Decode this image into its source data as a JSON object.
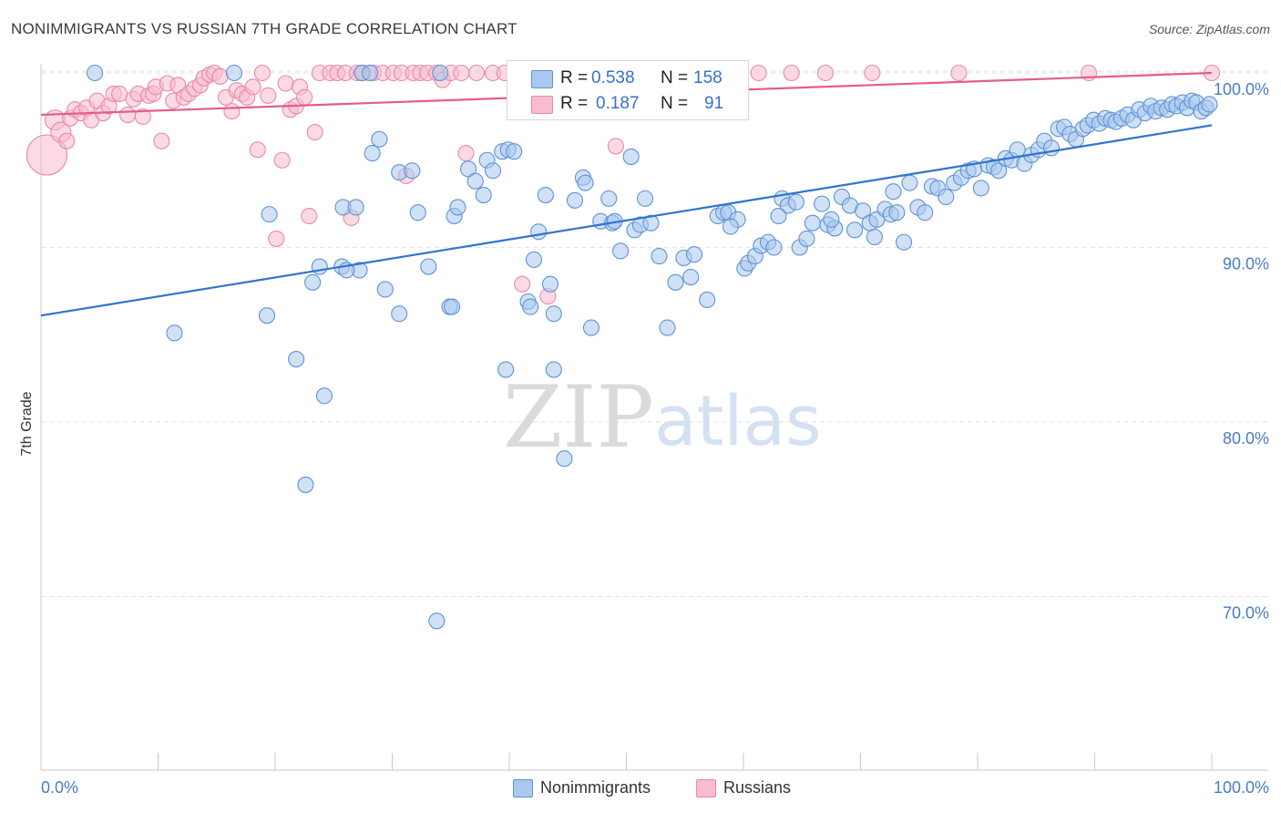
{
  "title": "NONIMMIGRANTS VS RUSSIAN 7TH GRADE CORRELATION CHART",
  "source": "Source: ZipAtlas.com",
  "watermark": {
    "zip": "ZIP",
    "atlas": "atlas"
  },
  "colors": {
    "blue_fill": "#a9c8ee",
    "blue_stroke": "#5e92d6",
    "blue_line": "#2f73d0",
    "pink_fill": "#f7bccd",
    "pink_stroke": "#e98aa8",
    "pink_line": "#e35d8c",
    "tick_text": "#4a7cc4",
    "grid": "#e2e2e2"
  },
  "stats_legend": {
    "rows": [
      {
        "r_label": "R =",
        "r_value": "0.538",
        "n_label": "N =",
        "n_value": "158",
        "color": "blue"
      },
      {
        "r_label": "R =",
        "r_value": "0.187",
        "n_label": "N =",
        "n_value": "91",
        "color": "pink"
      }
    ]
  },
  "series_legend": [
    {
      "label": "Nonimmigrants",
      "color": "blue"
    },
    {
      "label": "Russians",
      "color": "pink"
    }
  ],
  "chart_data": {
    "type": "scatter",
    "title": "NONIMMIGRANTS VS RUSSIAN 7TH GRADE CORRELATION CHART",
    "xlabel": "",
    "ylabel": "7th Grade",
    "xlim": [
      0,
      100
    ],
    "ylim": [
      61,
      101.5
    ],
    "x_ticks_labels": [
      "0.0%",
      "100.0%"
    ],
    "y_ticks": [
      100,
      90,
      80,
      70
    ],
    "y_ticks_labels": [
      "100.0%",
      "90.0%",
      "80.0%",
      "70.0%"
    ],
    "grid": true,
    "legend": "bottom-center",
    "series": [
      {
        "name": "Nonimmigrants",
        "color": "#5e92d6",
        "r": 0.538,
        "n": 158,
        "trend": {
          "x": [
            0,
            100
          ],
          "y": [
            86.1,
            97.0
          ]
        },
        "points": [
          [
            4.6,
            100
          ],
          [
            16.5,
            100
          ],
          [
            27.4,
            100
          ],
          [
            28.1,
            100
          ],
          [
            34.1,
            100
          ],
          [
            46.5,
            100
          ],
          [
            52.6,
            100
          ],
          [
            11.4,
            85.1
          ],
          [
            19.5,
            91.9
          ],
          [
            19.3,
            86.1
          ],
          [
            21.8,
            83.6
          ],
          [
            22.6,
            76.4
          ],
          [
            24.2,
            81.5
          ],
          [
            23.8,
            88.9
          ],
          [
            23.2,
            88.0
          ],
          [
            25.7,
            88.9
          ],
          [
            25.8,
            92.3
          ],
          [
            26.9,
            92.3
          ],
          [
            27.2,
            88.7
          ],
          [
            26.1,
            88.7
          ],
          [
            28.3,
            95.4
          ],
          [
            28.9,
            96.2
          ],
          [
            30.6,
            94.3
          ],
          [
            29.4,
            87.6
          ],
          [
            30.6,
            86.2
          ],
          [
            31.7,
            94.4
          ],
          [
            32.2,
            92.0
          ],
          [
            33.1,
            88.9
          ],
          [
            33.8,
            68.6
          ],
          [
            34.9,
            86.6
          ],
          [
            35.1,
            86.6
          ],
          [
            35.3,
            91.8
          ],
          [
            35.6,
            92.3
          ],
          [
            36.5,
            94.5
          ],
          [
            37.1,
            93.8
          ],
          [
            37.8,
            93.0
          ],
          [
            38.1,
            95.0
          ],
          [
            38.6,
            94.4
          ],
          [
            39.4,
            95.5
          ],
          [
            39.9,
            95.6
          ],
          [
            40.4,
            95.5
          ],
          [
            39.7,
            83.0
          ],
          [
            41.6,
            86.9
          ],
          [
            41.8,
            86.6
          ],
          [
            42.1,
            89.3
          ],
          [
            42.5,
            90.9
          ],
          [
            43.1,
            93.0
          ],
          [
            43.5,
            87.9
          ],
          [
            43.8,
            86.2
          ],
          [
            43.8,
            83.0
          ],
          [
            44.7,
            77.9
          ],
          [
            45.6,
            92.7
          ],
          [
            46.3,
            94.0
          ],
          [
            46.5,
            93.7
          ],
          [
            47.0,
            85.4
          ],
          [
            47.8,
            91.5
          ],
          [
            48.5,
            92.8
          ],
          [
            48.8,
            91.4
          ],
          [
            49.0,
            91.5
          ],
          [
            49.5,
            89.8
          ],
          [
            50.4,
            95.2
          ],
          [
            50.7,
            91.0
          ],
          [
            51.2,
            91.3
          ],
          [
            51.6,
            92.8
          ],
          [
            52.1,
            91.4
          ],
          [
            52.8,
            89.5
          ],
          [
            53.5,
            85.4
          ],
          [
            54.2,
            88.0
          ],
          [
            54.9,
            89.4
          ],
          [
            55.5,
            88.3
          ],
          [
            55.8,
            89.6
          ],
          [
            56.9,
            87.0
          ],
          [
            57.8,
            91.8
          ],
          [
            58.3,
            92.0
          ],
          [
            58.7,
            92.0
          ],
          [
            59.5,
            91.6
          ],
          [
            60.1,
            88.8
          ],
          [
            60.4,
            89.1
          ],
          [
            61.0,
            89.5
          ],
          [
            61.5,
            90.1
          ],
          [
            62.1,
            90.3
          ],
          [
            62.6,
            90.0
          ],
          [
            63.3,
            92.8
          ],
          [
            63.8,
            92.4
          ],
          [
            64.5,
            92.6
          ],
          [
            64.8,
            90.0
          ],
          [
            65.4,
            90.5
          ],
          [
            65.9,
            91.4
          ],
          [
            66.7,
            92.5
          ],
          [
            67.2,
            91.3
          ],
          [
            67.8,
            91.1
          ],
          [
            68.4,
            92.9
          ],
          [
            69.1,
            92.4
          ],
          [
            69.5,
            91.0
          ],
          [
            70.2,
            92.1
          ],
          [
            70.8,
            91.4
          ],
          [
            71.4,
            91.6
          ],
          [
            72.1,
            92.2
          ],
          [
            72.6,
            91.9
          ],
          [
            73.1,
            92.0
          ],
          [
            74.2,
            93.7
          ],
          [
            74.9,
            92.3
          ],
          [
            75.5,
            92.0
          ],
          [
            76.1,
            93.5
          ],
          [
            76.6,
            93.4
          ],
          [
            77.3,
            92.9
          ],
          [
            78.0,
            93.7
          ],
          [
            78.6,
            94.0
          ],
          [
            79.2,
            94.4
          ],
          [
            79.7,
            94.5
          ],
          [
            80.3,
            93.4
          ],
          [
            80.9,
            94.7
          ],
          [
            81.4,
            94.6
          ],
          [
            81.8,
            94.4
          ],
          [
            82.4,
            95.1
          ],
          [
            82.9,
            95.0
          ],
          [
            83.4,
            95.6
          ],
          [
            84.0,
            94.8
          ],
          [
            84.6,
            95.3
          ],
          [
            85.2,
            95.6
          ],
          [
            85.7,
            96.1
          ],
          [
            86.3,
            95.7
          ],
          [
            86.9,
            96.8
          ],
          [
            87.4,
            96.9
          ],
          [
            87.9,
            96.5
          ],
          [
            88.4,
            96.2
          ],
          [
            89.0,
            96.8
          ],
          [
            89.4,
            97.0
          ],
          [
            89.9,
            97.3
          ],
          [
            90.4,
            97.1
          ],
          [
            90.9,
            97.4
          ],
          [
            91.4,
            97.3
          ],
          [
            91.8,
            97.2
          ],
          [
            92.3,
            97.4
          ],
          [
            92.8,
            97.6
          ],
          [
            93.3,
            97.3
          ],
          [
            93.8,
            97.9
          ],
          [
            94.3,
            97.7
          ],
          [
            94.8,
            98.1
          ],
          [
            95.2,
            97.8
          ],
          [
            95.7,
            98.0
          ],
          [
            96.2,
            97.9
          ],
          [
            96.6,
            98.2
          ],
          [
            97.0,
            98.1
          ],
          [
            97.5,
            98.3
          ],
          [
            97.9,
            98.0
          ],
          [
            98.3,
            98.4
          ],
          [
            98.7,
            98.3
          ],
          [
            99.1,
            97.8
          ],
          [
            99.5,
            98.0
          ],
          [
            99.8,
            98.2
          ],
          [
            67.5,
            91.6
          ],
          [
            63.0,
            91.8
          ],
          [
            71.2,
            90.6
          ],
          [
            58.9,
            91.2
          ],
          [
            72.8,
            93.2
          ],
          [
            73.7,
            90.3
          ]
        ]
      },
      {
        "name": "Russians",
        "color": "#e98aa8",
        "r": 0.187,
        "n": 91,
        "trend": {
          "x": [
            0,
            100
          ],
          "y": [
            97.6,
            100.0
          ]
        },
        "points": [
          [
            0.5,
            95.3
          ],
          [
            1.2,
            97.3
          ],
          [
            1.7,
            96.6
          ],
          [
            2.2,
            96.1
          ],
          [
            2.5,
            97.4
          ],
          [
            2.9,
            97.9
          ],
          [
            3.4,
            97.7
          ],
          [
            3.9,
            98.0
          ],
          [
            4.3,
            97.3
          ],
          [
            4.8,
            98.4
          ],
          [
            5.3,
            97.7
          ],
          [
            5.8,
            98.1
          ],
          [
            6.2,
            98.8
          ],
          [
            6.7,
            98.8
          ],
          [
            7.4,
            97.6
          ],
          [
            7.9,
            98.5
          ],
          [
            8.3,
            98.8
          ],
          [
            8.7,
            97.5
          ],
          [
            9.2,
            98.7
          ],
          [
            9.6,
            98.8
          ],
          [
            9.8,
            99.2
          ],
          [
            10.3,
            96.1
          ],
          [
            10.8,
            99.4
          ],
          [
            11.3,
            98.4
          ],
          [
            11.7,
            99.3
          ],
          [
            12.2,
            98.6
          ],
          [
            12.6,
            98.8
          ],
          [
            13.1,
            99.1
          ],
          [
            13.6,
            99.3
          ],
          [
            13.9,
            99.7
          ],
          [
            14.4,
            99.9
          ],
          [
            14.8,
            100.0
          ],
          [
            15.3,
            99.8
          ],
          [
            15.8,
            98.6
          ],
          [
            16.3,
            97.8
          ],
          [
            16.7,
            99.0
          ],
          [
            17.2,
            98.8
          ],
          [
            17.6,
            98.6
          ],
          [
            18.1,
            99.2
          ],
          [
            18.5,
            95.6
          ],
          [
            18.9,
            100.0
          ],
          [
            19.4,
            98.7
          ],
          [
            20.1,
            90.5
          ],
          [
            20.6,
            95.0
          ],
          [
            20.9,
            99.4
          ],
          [
            21.3,
            97.9
          ],
          [
            21.8,
            98.1
          ],
          [
            22.1,
            99.2
          ],
          [
            22.5,
            98.6
          ],
          [
            22.9,
            91.8
          ],
          [
            23.4,
            96.6
          ],
          [
            23.8,
            100.0
          ],
          [
            24.7,
            100.0
          ],
          [
            25.3,
            100.0
          ],
          [
            26.0,
            100.0
          ],
          [
            26.5,
            91.7
          ],
          [
            27.0,
            100.0
          ],
          [
            27.5,
            100.0
          ],
          [
            28.4,
            100.0
          ],
          [
            29.2,
            100.0
          ],
          [
            30.1,
            100.0
          ],
          [
            30.8,
            100.0
          ],
          [
            31.2,
            94.1
          ],
          [
            31.8,
            100.0
          ],
          [
            32.4,
            100.0
          ],
          [
            33.0,
            100.0
          ],
          [
            33.8,
            100.0
          ],
          [
            34.3,
            99.6
          ],
          [
            35.0,
            100.0
          ],
          [
            35.9,
            100.0
          ],
          [
            36.3,
            95.4
          ],
          [
            37.2,
            100.0
          ],
          [
            38.6,
            100.0
          ],
          [
            39.6,
            100.0
          ],
          [
            41.1,
            87.9
          ],
          [
            41.8,
            100.0
          ],
          [
            43.3,
            87.2
          ],
          [
            44.6,
            100.0
          ],
          [
            46.1,
            100.0
          ],
          [
            47.5,
            100.0
          ],
          [
            49.1,
            95.8
          ],
          [
            50.6,
            100.0
          ],
          [
            52.1,
            100.0
          ],
          [
            54.0,
            100.0
          ],
          [
            56.3,
            100.0
          ],
          [
            59.2,
            100.0
          ],
          [
            61.3,
            100.0
          ],
          [
            64.1,
            100.0
          ],
          [
            67.0,
            100.0
          ],
          [
            71.0,
            100.0
          ],
          [
            78.4,
            100.0
          ],
          [
            89.5,
            100.0
          ],
          [
            100.0,
            100.0
          ]
        ]
      }
    ]
  }
}
